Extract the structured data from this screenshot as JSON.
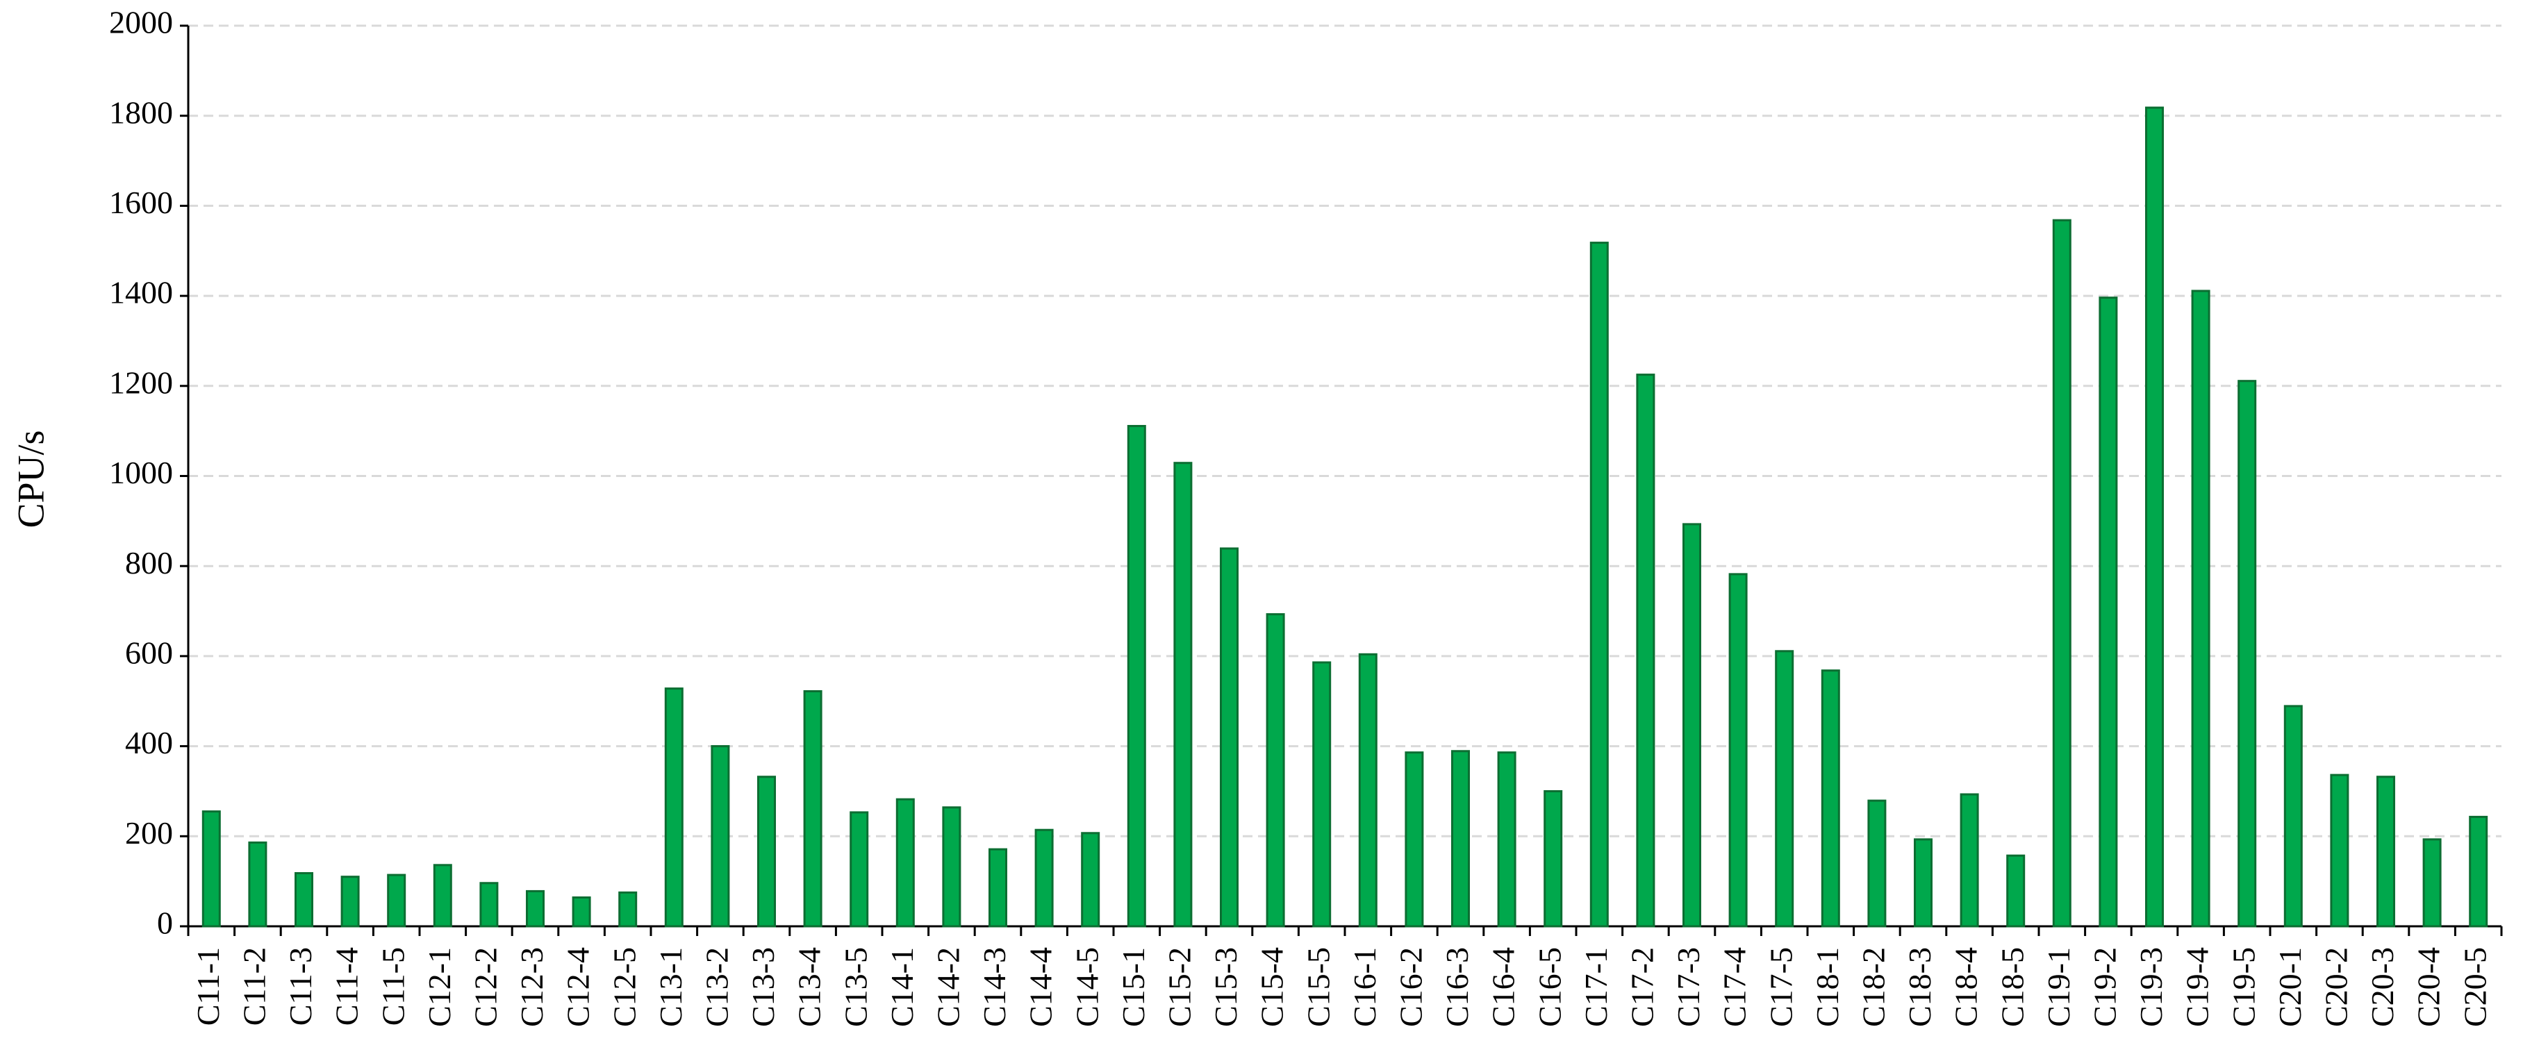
{
  "chart_data": {
    "type": "bar",
    "y_label": "CPU/s",
    "categories": [
      "C11-1",
      "C11-2",
      "C11-3",
      "C11-4",
      "C11-5",
      "C12-1",
      "C12-2",
      "C12-3",
      "C12-4",
      "C12-5",
      "C13-1",
      "C13-2",
      "C13-3",
      "C13-4",
      "C13-5",
      "C14-1",
      "C14-2",
      "C14-3",
      "C14-4",
      "C14-5",
      "C15-1",
      "C15-2",
      "C15-3",
      "C15-4",
      "C15-5",
      "C16-1",
      "C16-2",
      "C16-3",
      "C16-4",
      "C16-5",
      "C17-1",
      "C17-2",
      "C17-3",
      "C17-4",
      "C17-5",
      "C18-1",
      "C18-2",
      "C18-3",
      "C18-4",
      "C18-5",
      "C19-1",
      "C19-2",
      "C19-3",
      "C19-4",
      "C19-5",
      "C20-1",
      "C20-2",
      "C20-3",
      "C20-4",
      "C20-5"
    ],
    "values": [
      255,
      186,
      118,
      110,
      114,
      136,
      96,
      78,
      64,
      75,
      528,
      400,
      332,
      522,
      253,
      282,
      264,
      171,
      214,
      207,
      1111,
      1029,
      839,
      693,
      586,
      604,
      386,
      389,
      386,
      300,
      1518,
      1225,
      893,
      782,
      611,
      568,
      279,
      193,
      293,
      157,
      1568,
      1396,
      1818,
      1411,
      1211,
      489,
      336,
      332,
      193,
      243
    ],
    "color": "#00a84c",
    "edge_color": "#0c6e32",
    "ylim": [
      0,
      2000
    ],
    "yticks": [
      0,
      200,
      400,
      600,
      800,
      1000,
      1200,
      1400,
      1600,
      1800,
      2000
    ],
    "grid": true
  }
}
